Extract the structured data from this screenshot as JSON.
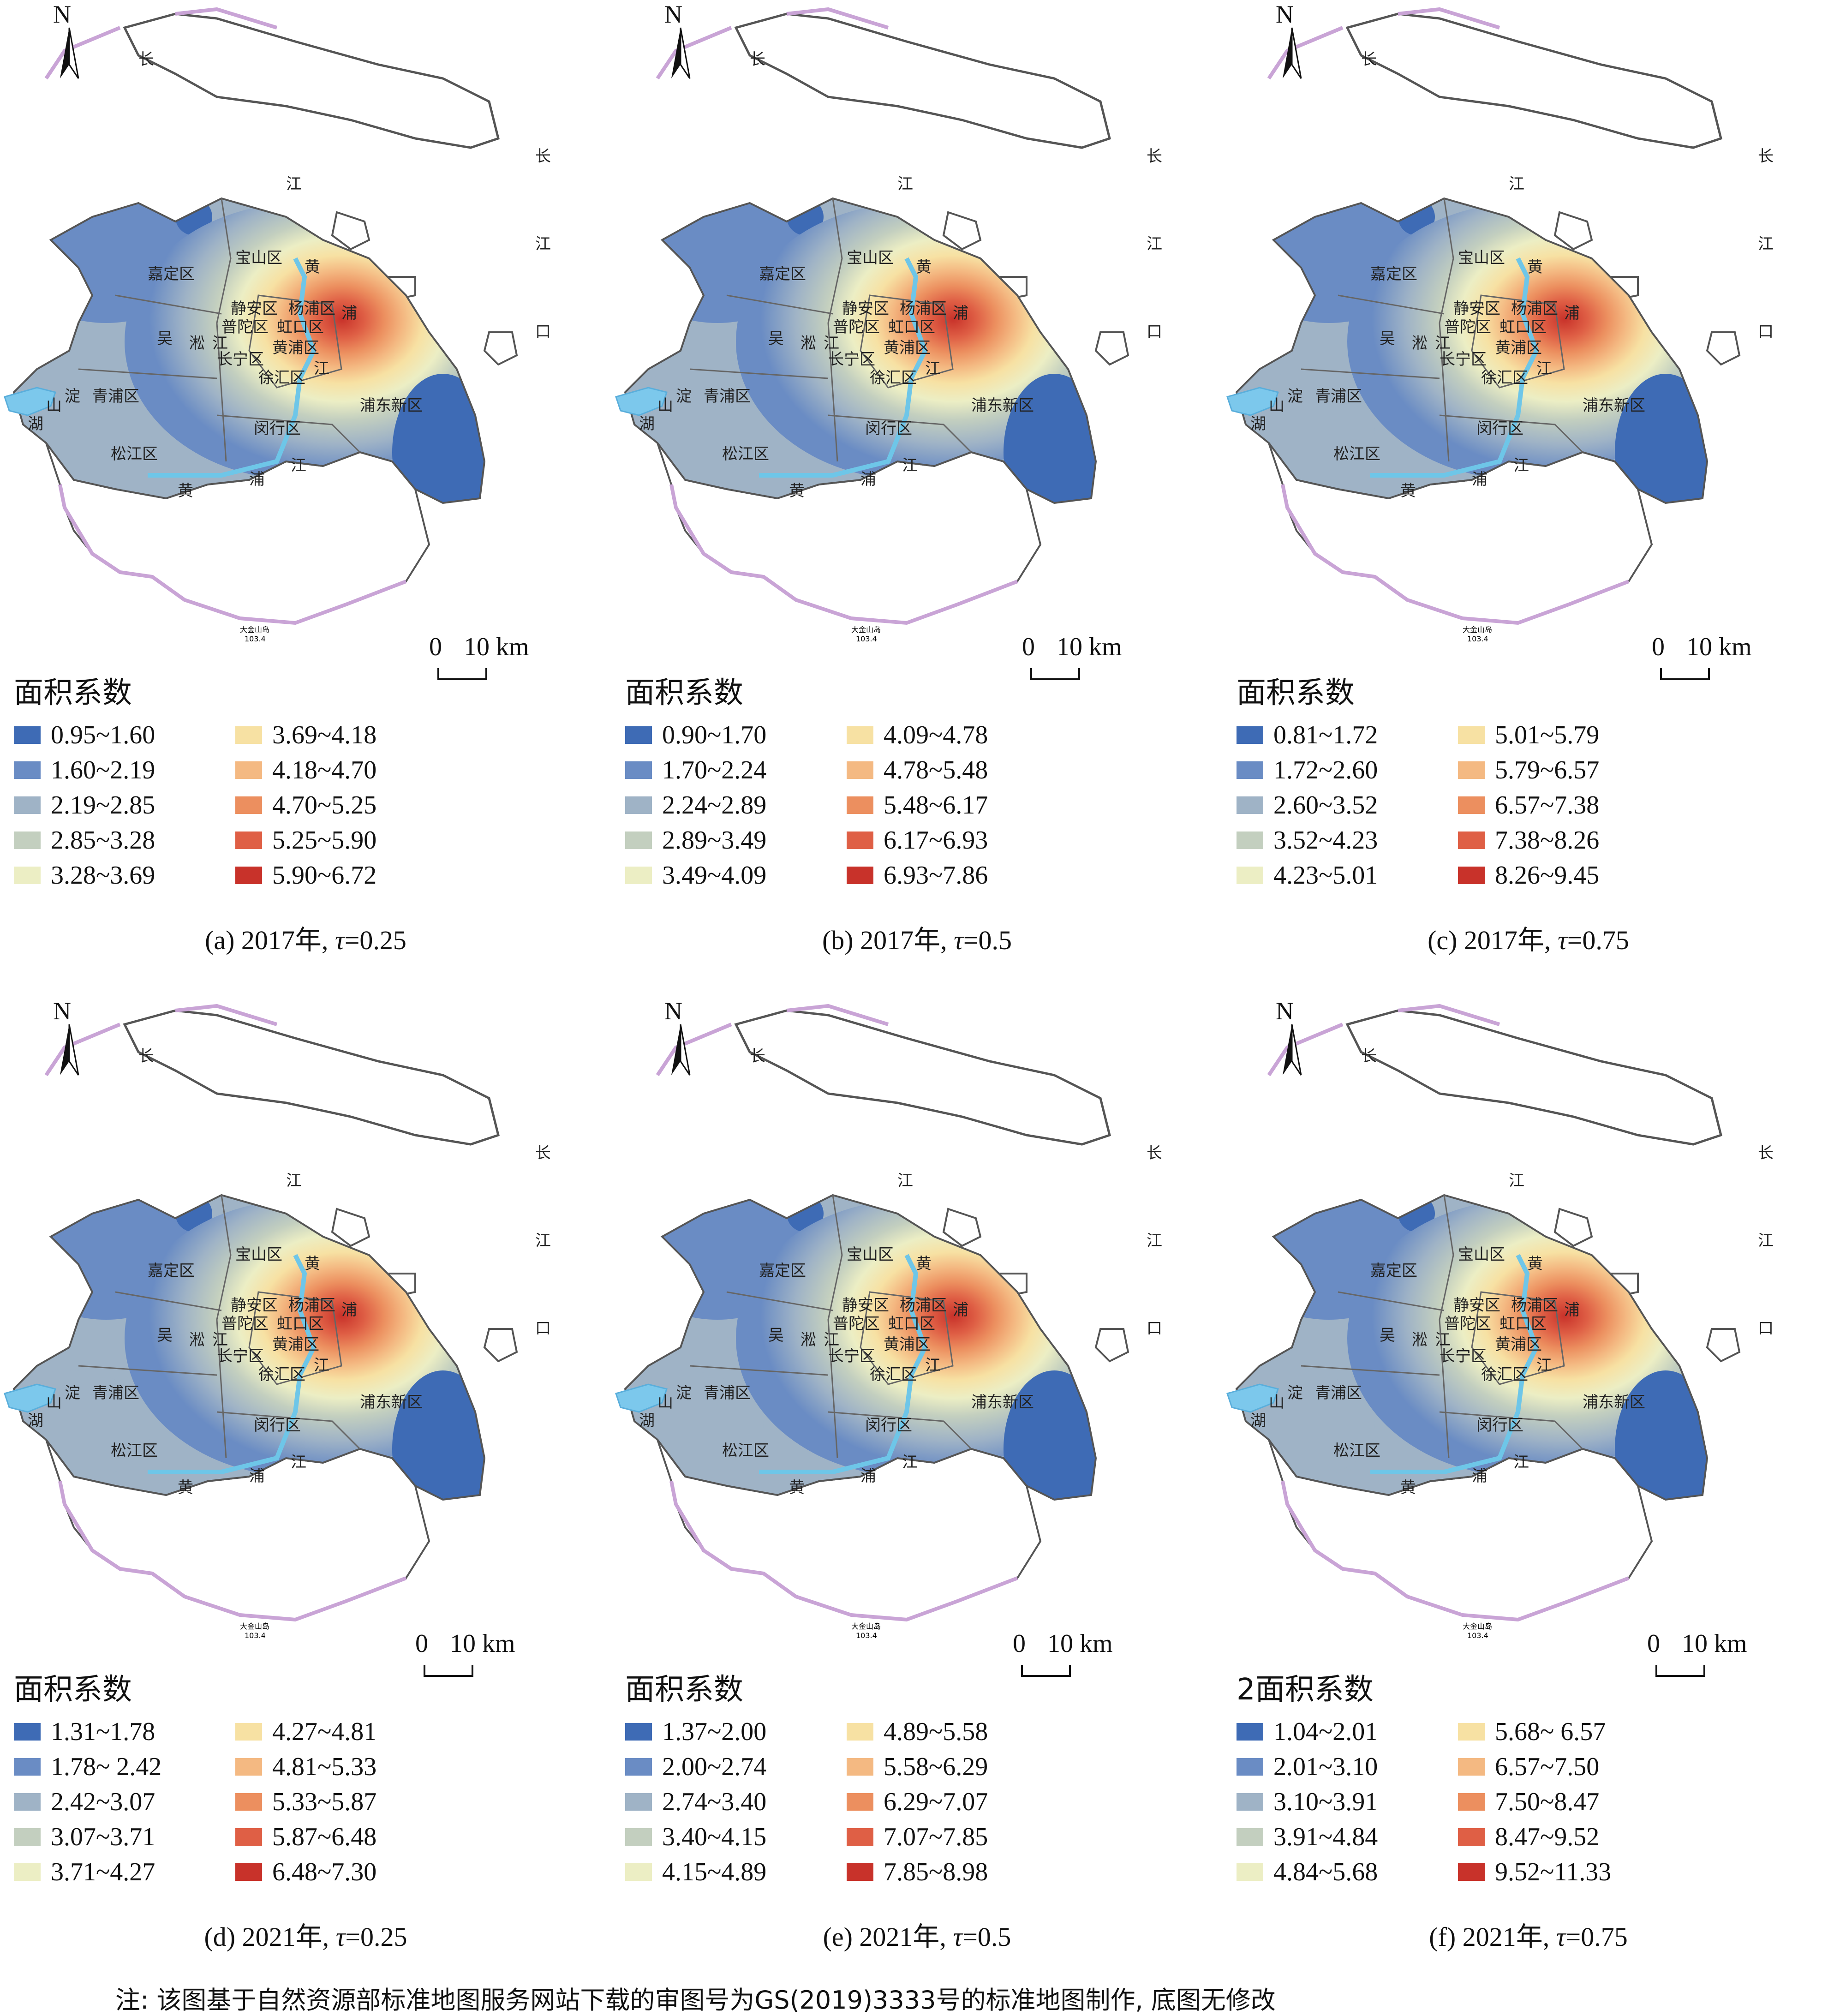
{
  "note": "注: 该图基于自然资源部标准地图服务网站下载的审图号为GS(2019)3333号的标准地图制作, 底图无修改",
  "north_label": "N",
  "scale": {
    "zero": "0",
    "ten": "10 km"
  },
  "map_labels": {
    "chang": "长",
    "jiang": "江",
    "kou": "口",
    "huang": "黄",
    "pu": "浦",
    "baoshan": "宝山区",
    "jiading": "嘉定区",
    "jingan": "静安区",
    "yangpu": "杨浦区",
    "putuo": "普陀区",
    "hongkou": "虹口区",
    "huangpu": "黄浦区",
    "changning": "长宁区",
    "xuhui": "徐汇区",
    "qingpu": "青浦区",
    "songjiang": "松江区",
    "minhang": "闵行区",
    "pudong": "浦东新区",
    "dianshan1": "淀",
    "dianshan2": "山",
    "dianshan3": "湖",
    "wu": "吴",
    "song": "淞",
    "jiang2": "江",
    "dajinshan": "大金山岛",
    "dajinshan_h": "103.4"
  },
  "colors": [
    "#3e6bb5",
    "#6a8cc4",
    "#9fb3c6",
    "#c3cfbf",
    "#eceec4",
    "#f7e1a3",
    "#f4b982",
    "#ec8f5f",
    "#df5f45",
    "#c8322a"
  ],
  "panels": [
    {
      "legend_title": "面积系数",
      "caption_prefix": "(a) 2017年, ",
      "caption_tau": "τ",
      "caption_suffix": "=0.25",
      "legend": [
        "0.95~1.60",
        "1.60~2.19",
        "2.19~2.85",
        "2.85~3.28",
        "3.28~3.69",
        "3.69~4.18",
        "4.18~4.70",
        "4.70~5.25",
        "5.25~5.90",
        "5.90~6.72"
      ]
    },
    {
      "legend_title": "面积系数",
      "caption_prefix": "(b) 2017年, ",
      "caption_tau": "τ",
      "caption_suffix": "=0.5",
      "legend": [
        "0.90~1.70",
        "1.70~2.24",
        "2.24~2.89",
        "2.89~3.49",
        "3.49~4.09",
        "4.09~4.78",
        "4.78~5.48",
        "5.48~6.17",
        "6.17~6.93",
        "6.93~7.86"
      ]
    },
    {
      "legend_title": "面积系数",
      "caption_prefix": "(c) 2017年, ",
      "caption_tau": "τ",
      "caption_suffix": "=0.75",
      "legend": [
        "0.81~1.72",
        "1.72~2.60",
        "2.60~3.52",
        "3.52~4.23",
        "4.23~5.01",
        "5.01~5.79",
        "5.79~6.57",
        "6.57~7.38",
        "7.38~8.26",
        "8.26~9.45"
      ]
    },
    {
      "legend_title": "面积系数",
      "caption_prefix": "(d) 2021年, ",
      "caption_tau": "τ",
      "caption_suffix": "=0.25",
      "legend": [
        "1.31~1.78",
        "1.78~ 2.42",
        "2.42~3.07",
        "3.07~3.71",
        "3.71~4.27",
        "4.27~4.81",
        "4.81~5.33",
        "5.33~5.87",
        "5.87~6.48",
        "6.48~7.30"
      ]
    },
    {
      "legend_title": "面积系数",
      "caption_prefix": "(e) 2021年, ",
      "caption_tau": "τ",
      "caption_suffix": "=0.5",
      "legend": [
        "1.37~2.00",
        "2.00~2.74",
        "2.74~3.40",
        "3.40~4.15",
        "4.15~4.89",
        "4.89~5.58",
        "5.58~6.29",
        "6.29~7.07",
        "7.07~7.85",
        "7.85~8.98"
      ]
    },
    {
      "legend_title": "2面积系数",
      "caption_prefix": "(f) 2021年, ",
      "caption_tau": "τ",
      "caption_suffix": "=0.75",
      "legend": [
        "1.04~2.01",
        "2.01~3.10",
        "3.10~3.91",
        "3.91~4.84",
        "4.84~5.68",
        "5.68~ 6.57",
        "6.57~7.50",
        "7.50~8.47",
        "8.47~9.52",
        "9.52~11.33"
      ]
    }
  ]
}
